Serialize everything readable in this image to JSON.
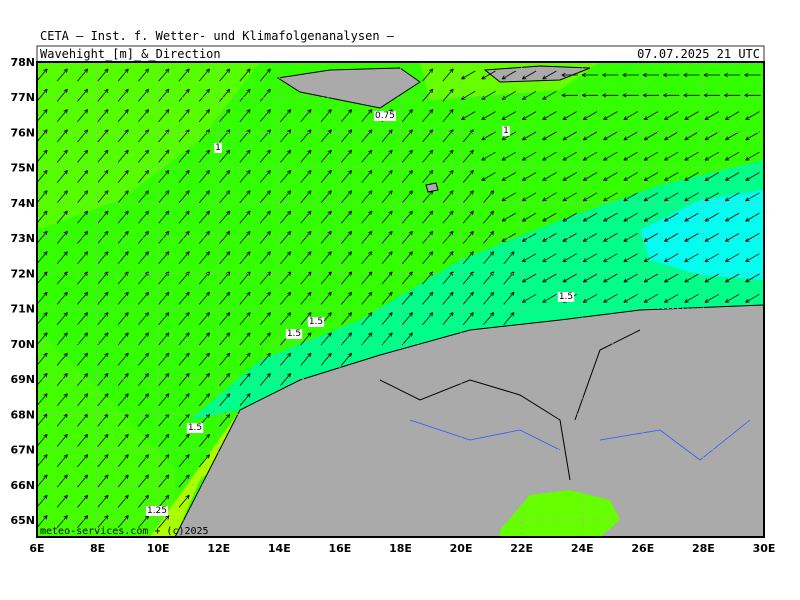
{
  "header": {
    "title": "CETA — Inst. f. Wetter- und Klimafolgenanalysen —",
    "subtitle": "Wavehight_[m]_&_Direction",
    "timestamp": "07.07.2025 21 UTC"
  },
  "map": {
    "lat_labels": [
      "78N",
      "77N",
      "76N",
      "75N",
      "74N",
      "73N",
      "72N",
      "71N",
      "70N",
      "69N",
      "68N",
      "67N",
      "66N",
      "65N"
    ],
    "lon_labels": [
      "6E",
      "8E",
      "10E",
      "12E",
      "14E",
      "16E",
      "18E",
      "20E",
      "22E",
      "24E",
      "26E",
      "28E",
      "30E"
    ],
    "contour_labels": [
      "0.75",
      "1",
      "1",
      "1.5",
      "1.5",
      "1.5",
      "1.5",
      "1.25"
    ],
    "credit": "meteo-services.com + (c)2025"
  }
}
